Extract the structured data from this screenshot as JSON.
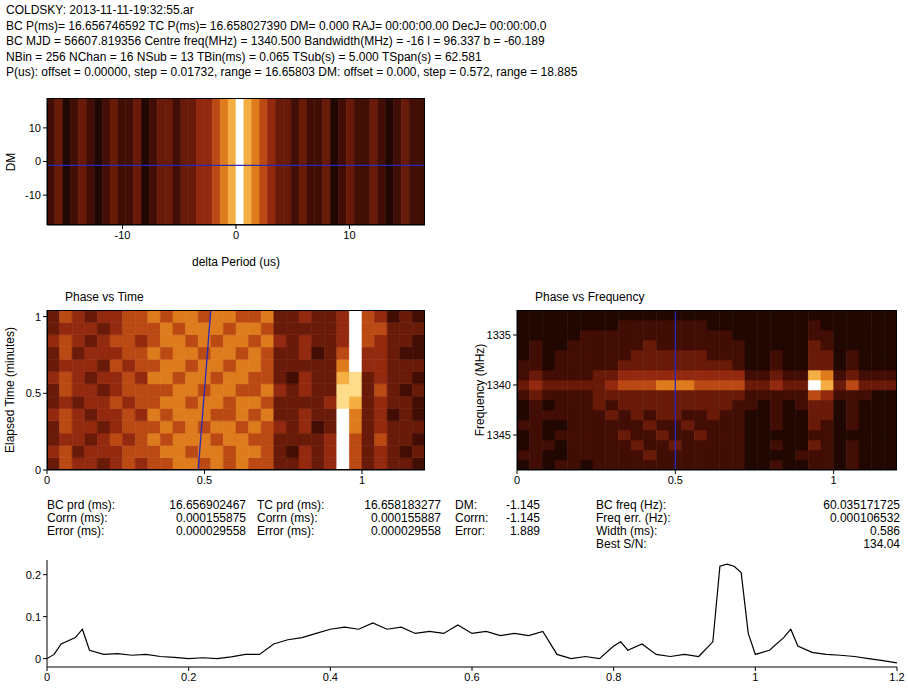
{
  "header": {
    "lines": [
      "COLDSKY: 2013-11-11-19:32:55.ar",
      "BC P(ms)= 16.656746592 TC P(ms)= 16.658027390 DM= 0.000 RAJ= 00:00:00.00 DecJ= 00:00:00.0",
      "BC MJD = 56607.819356 Centre freq(MHz) = 1340.500 Bandwidth(MHz) = -16 l = 96.337 b = -60.189",
      "NBin = 256 NChan = 16 NSub = 13 TBin(ms) = 0.065 TSub(s) = 5.000 TSpan(s) = 62.581",
      "P(us): offset = 0.00000, step = 0.01732, range = 16.65803 DM: offset = 0.000, step = 0.572, range = 18.885"
    ]
  },
  "chart_data": [
    {
      "type": "heatmap",
      "x_label": "delta Period (us)",
      "y_label": "DM",
      "xlim": [
        -16.658,
        16.658
      ],
      "xticks": [
        -10,
        0,
        10
      ],
      "ylim": [
        -18.885,
        18.885
      ],
      "yticks": [
        -10,
        0,
        10
      ],
      "zlim": [
        0,
        9
      ],
      "color": "#2a2ab8",
      "hline": -1.145,
      "cells": [
        [
          2,
          3,
          1,
          2,
          3,
          2,
          1,
          2,
          3,
          2,
          2,
          3,
          1,
          2,
          3,
          3,
          2,
          3,
          3,
          4,
          4,
          5,
          6,
          7,
          9,
          7,
          6,
          5,
          4,
          3,
          3,
          2,
          3,
          2,
          2,
          3,
          1,
          2,
          3,
          2,
          2,
          3,
          2,
          1,
          2,
          3,
          2,
          2
        ]
      ]
    },
    {
      "type": "heatmap",
      "title": "Phase vs Time",
      "y_label": "Elapsed Time (minutes)",
      "xlim": [
        0,
        1.2
      ],
      "xticks": [
        0,
        0.5,
        1
      ],
      "ylim": [
        0,
        1.043
      ],
      "yticks": [
        0,
        0.5,
        1
      ],
      "zlim": [
        0,
        9
      ],
      "color": "#2a2ab8",
      "segment": {
        "x": [
          0.48,
          0.52
        ],
        "y": [
          0,
          1.043
        ]
      },
      "cells": [
        [
          3,
          5,
          4,
          4,
          3,
          4,
          5,
          4,
          5,
          5,
          6,
          6,
          5,
          6,
          5,
          6,
          5,
          5,
          3,
          3,
          4,
          3,
          4,
          9,
          5,
          3,
          4,
          3,
          3,
          2
        ],
        [
          4,
          5,
          3,
          4,
          4,
          4,
          5,
          5,
          5,
          6,
          6,
          5,
          6,
          6,
          5,
          6,
          6,
          5,
          3,
          2,
          4,
          3,
          4,
          9,
          5,
          3,
          4,
          3,
          2,
          3
        ],
        [
          3,
          4,
          4,
          3,
          4,
          5,
          4,
          5,
          6,
          5,
          6,
          6,
          6,
          5,
          6,
          6,
          5,
          5,
          3,
          3,
          3,
          3,
          4,
          9,
          5,
          3,
          5,
          3,
          3,
          2
        ],
        [
          3,
          5,
          4,
          4,
          3,
          4,
          5,
          5,
          5,
          6,
          5,
          6,
          5,
          6,
          6,
          5,
          6,
          5,
          4,
          3,
          4,
          2,
          3,
          9,
          6,
          3,
          4,
          3,
          3,
          3
        ],
        [
          4,
          5,
          4,
          3,
          4,
          4,
          5,
          4,
          6,
          5,
          6,
          6,
          6,
          5,
          5,
          6,
          5,
          6,
          3,
          3,
          4,
          3,
          3,
          9,
          6,
          3,
          4,
          2,
          3,
          2
        ],
        [
          3,
          4,
          3,
          4,
          4,
          5,
          4,
          5,
          5,
          6,
          6,
          5,
          6,
          6,
          5,
          6,
          6,
          5,
          3,
          3,
          3,
          3,
          4,
          8,
          7,
          3,
          4,
          3,
          3,
          2
        ],
        [
          3,
          5,
          4,
          4,
          3,
          4,
          5,
          5,
          5,
          5,
          6,
          6,
          5,
          6,
          6,
          5,
          5,
          6,
          4,
          3,
          4,
          3,
          3,
          8,
          8,
          3,
          5,
          3,
          2,
          3
        ],
        [
          4,
          5,
          4,
          3,
          4,
          4,
          5,
          4,
          6,
          6,
          5,
          6,
          6,
          5,
          6,
          6,
          5,
          5,
          3,
          2,
          4,
          3,
          3,
          7,
          8,
          3,
          4,
          3,
          3,
          2
        ],
        [
          3,
          4,
          4,
          4,
          3,
          5,
          4,
          5,
          5,
          6,
          6,
          5,
          6,
          6,
          5,
          6,
          6,
          5,
          3,
          3,
          3,
          3,
          3,
          6,
          9,
          4,
          4,
          3,
          3,
          3
        ],
        [
          3,
          5,
          3,
          4,
          4,
          4,
          5,
          5,
          6,
          5,
          6,
          6,
          5,
          6,
          6,
          5,
          6,
          5,
          3,
          3,
          4,
          2,
          3,
          5,
          9,
          4,
          4,
          3,
          2,
          2
        ],
        [
          4,
          5,
          4,
          3,
          4,
          5,
          5,
          4,
          5,
          6,
          6,
          5,
          6,
          5,
          6,
          6,
          5,
          6,
          4,
          3,
          4,
          3,
          3,
          4,
          9,
          5,
          4,
          3,
          3,
          2
        ],
        [
          3,
          4,
          4,
          4,
          3,
          4,
          5,
          5,
          5,
          6,
          5,
          6,
          6,
          6,
          5,
          6,
          6,
          5,
          3,
          3,
          3,
          3,
          3,
          4,
          9,
          5,
          5,
          3,
          3,
          3
        ],
        [
          3,
          5,
          4,
          3,
          4,
          4,
          5,
          5,
          6,
          5,
          6,
          6,
          5,
          6,
          6,
          5,
          5,
          6,
          3,
          3,
          4,
          3,
          3,
          4,
          9,
          5,
          4,
          2,
          3,
          2
        ]
      ]
    },
    {
      "type": "heatmap",
      "title": "Phase vs Frequency",
      "y_label": "Frequency (MHz)",
      "xlim": [
        0,
        1.2
      ],
      "xticks": [
        0,
        0.5,
        1
      ],
      "ylim": [
        1348.5,
        1332.5
      ],
      "yticks": [
        1335,
        1340,
        1345
      ],
      "zlim": [
        0,
        9
      ],
      "color": "#2a2ab8",
      "vline": 0.5,
      "cells": [
        [
          1,
          2,
          1,
          2,
          2,
          1,
          2,
          2,
          2,
          2,
          2,
          2,
          2,
          2,
          2,
          2,
          2,
          2,
          1,
          1,
          2,
          1,
          1,
          2,
          2,
          1,
          2,
          1,
          1,
          1
        ],
        [
          2,
          2,
          1,
          1,
          2,
          2,
          2,
          2,
          2,
          2,
          3,
          2,
          2,
          2,
          2,
          2,
          2,
          2,
          1,
          1,
          1,
          1,
          2,
          2,
          2,
          1,
          2,
          1,
          1,
          1
        ],
        [
          1,
          2,
          2,
          1,
          2,
          2,
          2,
          2,
          2,
          3,
          2,
          2,
          3,
          2,
          2,
          2,
          2,
          2,
          1,
          1,
          2,
          1,
          1,
          3,
          2,
          1,
          2,
          1,
          1,
          1
        ],
        [
          1,
          2,
          1,
          2,
          2,
          2,
          2,
          2,
          3,
          2,
          2,
          3,
          2,
          2,
          3,
          2,
          2,
          2,
          1,
          1,
          1,
          1,
          1,
          2,
          2,
          1,
          1,
          1,
          1,
          1
        ],
        [
          2,
          2,
          1,
          1,
          2,
          2,
          2,
          2,
          2,
          2,
          3,
          2,
          2,
          3,
          2,
          2,
          2,
          2,
          1,
          1,
          2,
          1,
          1,
          3,
          2,
          1,
          2,
          1,
          1,
          1
        ],
        [
          1,
          2,
          2,
          2,
          2,
          2,
          2,
          3,
          2,
          3,
          2,
          3,
          3,
          2,
          2,
          3,
          2,
          2,
          1,
          1,
          2,
          1,
          1,
          3,
          3,
          1,
          2,
          1,
          1,
          1
        ],
        [
          1,
          2,
          1,
          2,
          2,
          2,
          3,
          2,
          3,
          3,
          3,
          3,
          3,
          3,
          3,
          3,
          3,
          2,
          2,
          1,
          2,
          1,
          2,
          3,
          3,
          1,
          2,
          1,
          1,
          1
        ],
        [
          2,
          3,
          2,
          2,
          2,
          2,
          3,
          3,
          3,
          3,
          3,
          3,
          3,
          3,
          3,
          3,
          3,
          3,
          2,
          2,
          2,
          2,
          2,
          5,
          4,
          2,
          2,
          2,
          1,
          1
        ],
        [
          3,
          4,
          3,
          3,
          3,
          3,
          3,
          4,
          5,
          5,
          5,
          6,
          6,
          6,
          5,
          5,
          5,
          5,
          3,
          3,
          4,
          3,
          3,
          9,
          7,
          3,
          5,
          3,
          3,
          3
        ],
        [
          2,
          3,
          2,
          2,
          2,
          2,
          3,
          3,
          4,
          4,
          4,
          4,
          4,
          4,
          4,
          4,
          4,
          4,
          2,
          2,
          3,
          2,
          2,
          7,
          6,
          2,
          3,
          2,
          2,
          2
        ],
        [
          2,
          2,
          1,
          2,
          2,
          2,
          2,
          2,
          3,
          3,
          3,
          3,
          3,
          3,
          3,
          3,
          3,
          2,
          1,
          1,
          2,
          1,
          1,
          3,
          3,
          1,
          2,
          1,
          1,
          1
        ],
        [
          1,
          2,
          1,
          2,
          2,
          2,
          2,
          2,
          2,
          3,
          3,
          3,
          3,
          3,
          3,
          2,
          2,
          2,
          1,
          1,
          2,
          1,
          1,
          3,
          3,
          1,
          2,
          1,
          1,
          1
        ],
        [
          1,
          2,
          1,
          1,
          2,
          2,
          2,
          2,
          2,
          2,
          3,
          2,
          2,
          2,
          2,
          2,
          2,
          2,
          1,
          1,
          1,
          1,
          1,
          3,
          2,
          1,
          1,
          1,
          1,
          1
        ],
        [
          1,
          1,
          1,
          1,
          1,
          2,
          2,
          2,
          2,
          2,
          2,
          2,
          2,
          2,
          2,
          2,
          2,
          1,
          1,
          1,
          1,
          1,
          1,
          2,
          2,
          1,
          1,
          1,
          1,
          1
        ],
        [
          1,
          1,
          1,
          1,
          1,
          1,
          1,
          1,
          2,
          2,
          2,
          2,
          2,
          2,
          2,
          1,
          1,
          1,
          1,
          1,
          1,
          1,
          1,
          2,
          1,
          1,
          1,
          1,
          1,
          1
        ],
        [
          1,
          1,
          1,
          1,
          1,
          1,
          1,
          1,
          1,
          1,
          1,
          1,
          1,
          1,
          1,
          1,
          1,
          1,
          1,
          1,
          1,
          1,
          1,
          1,
          1,
          1,
          1,
          1,
          1,
          1
        ]
      ]
    },
    {
      "type": "line",
      "color": "#000000",
      "xlim": [
        0,
        1.2
      ],
      "xticks": [
        0,
        0.2,
        0.4,
        0.6,
        0.8,
        1,
        1.2
      ],
      "ylim": [
        -0.02,
        0.235
      ],
      "yticks": [
        0,
        0.1,
        0.2
      ],
      "x": [
        0,
        0.01,
        0.02,
        0.04,
        0.05,
        0.06,
        0.08,
        0.1,
        0.12,
        0.14,
        0.16,
        0.18,
        0.2,
        0.22,
        0.24,
        0.26,
        0.28,
        0.3,
        0.32,
        0.34,
        0.36,
        0.38,
        0.4,
        0.42,
        0.44,
        0.46,
        0.48,
        0.5,
        0.52,
        0.54,
        0.56,
        0.58,
        0.6,
        0.62,
        0.64,
        0.66,
        0.68,
        0.7,
        0.72,
        0.74,
        0.76,
        0.78,
        0.8,
        0.81,
        0.82,
        0.84,
        0.86,
        0.88,
        0.9,
        0.92,
        0.94,
        0.95,
        0.96,
        0.97,
        0.98,
        0.99,
        1,
        1.02,
        1.04,
        1.05,
        1.06,
        1.08,
        1.1,
        1.12,
        1.14,
        1.16,
        1.18,
        1.2
      ],
      "values": [
        0,
        0.01,
        0.035,
        0.05,
        0.07,
        0.02,
        0.01,
        0.012,
        0.008,
        0.01,
        0.005,
        0.003,
        0,
        0.002,
        0,
        0.004,
        0.01,
        0.01,
        0.035,
        0.045,
        0.05,
        0.06,
        0.07,
        0.075,
        0.07,
        0.085,
        0.07,
        0.075,
        0.06,
        0.065,
        0.06,
        0.08,
        0.06,
        0.065,
        0.055,
        0.06,
        0.055,
        0.065,
        0.01,
        0,
        0.005,
        0,
        0.03,
        0.04,
        0.02,
        0.035,
        0.01,
        0.005,
        0.01,
        0.005,
        0.04,
        0.22,
        0.225,
        0.22,
        0.205,
        0.06,
        0.01,
        0.02,
        0.05,
        0.07,
        0.03,
        0.015,
        0.01,
        0.008,
        0.005,
        0,
        -0.005,
        -0.01
      ]
    }
  ],
  "parameters": [
    [
      [
        "BC prd (ms):",
        "16.656902467"
      ],
      [
        "Corrn (ms):",
        "0.000155875"
      ],
      [
        "Error (ms):",
        "0.000029558"
      ]
    ],
    [
      [
        "TC prd (ms):",
        "16.658183277"
      ],
      [
        "Corrn (ms):",
        "0.000155887"
      ],
      [
        "Error (ms):",
        "0.000029558"
      ]
    ],
    [
      [
        "DM:",
        "-1.145"
      ],
      [
        "Corrn:",
        "-1.145"
      ],
      [
        "Error:",
        "1.889"
      ]
    ],
    [
      [
        "BC freq (Hz):",
        "60.035171725"
      ],
      [
        "Freq err. (Hz):",
        "0.000106532"
      ],
      [
        "Width (ms):",
        "0.586"
      ],
      [
        "Best S/N:",
        "134.04"
      ]
    ]
  ]
}
